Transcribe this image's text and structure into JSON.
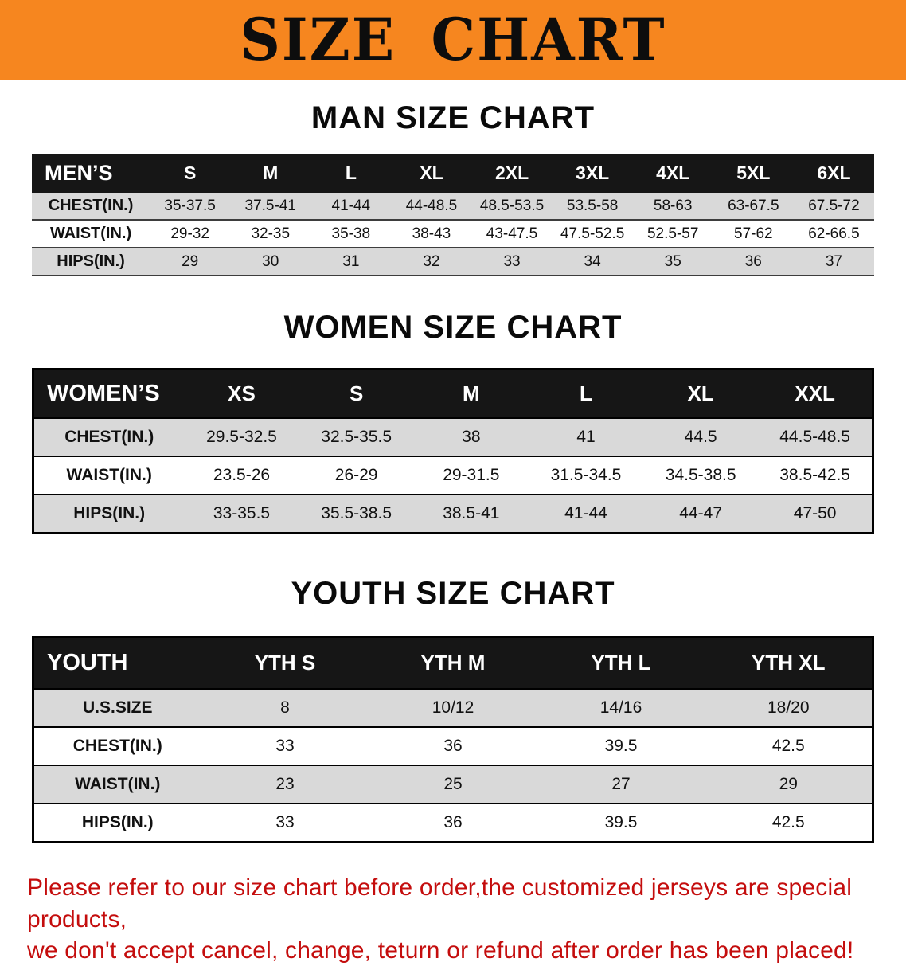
{
  "banner": {
    "title": "SIZE CHART"
  },
  "colors": {
    "banner_bg": "#f6861f",
    "header_bg": "#161616",
    "row_shade": "#d9d9d9",
    "disclaimer_red": "#c40d0d"
  },
  "sections": {
    "men": {
      "heading": "MAN SIZE CHART",
      "table": {
        "header": [
          "MEN’S",
          "S",
          "M",
          "L",
          "XL",
          "2XL",
          "3XL",
          "4XL",
          "5XL",
          "6XL"
        ],
        "rows": [
          {
            "label": "CHEST(IN.)",
            "values": [
              "35-37.5",
              "37.5-41",
              "41-44",
              "44-48.5",
              "48.5-53.5",
              "53.5-58",
              "58-63",
              "63-67.5",
              "67.5-72"
            ]
          },
          {
            "label": "WAIST(IN.)",
            "values": [
              "29-32",
              "32-35",
              "35-38",
              "38-43",
              "43-47.5",
              "47.5-52.5",
              "52.5-57",
              "57-62",
              "62-66.5"
            ]
          },
          {
            "label": "HIPS(IN.)",
            "values": [
              "29",
              "30",
              "31",
              "32",
              "33",
              "34",
              "35",
              "36",
              "37"
            ]
          }
        ]
      }
    },
    "women": {
      "heading": "WOMEN SIZE CHART",
      "table": {
        "header": [
          "WOMEN’S",
          "XS",
          "S",
          "M",
          "L",
          "XL",
          "XXL"
        ],
        "rows": [
          {
            "label": "CHEST(IN.)",
            "values": [
              "29.5-32.5",
              "32.5-35.5",
              "38",
              "41",
              "44.5",
              "44.5-48.5"
            ]
          },
          {
            "label": "WAIST(IN.)",
            "values": [
              "23.5-26",
              "26-29",
              "29-31.5",
              "31.5-34.5",
              "34.5-38.5",
              "38.5-42.5"
            ]
          },
          {
            "label": "HIPS(IN.)",
            "values": [
              "33-35.5",
              "35.5-38.5",
              "38.5-41",
              "41-44",
              "44-47",
              "47-50"
            ]
          }
        ]
      }
    },
    "youth": {
      "heading": "YOUTH SIZE CHART",
      "table": {
        "header": [
          "YOUTH",
          "YTH S",
          "YTH M",
          "YTH L",
          "YTH XL"
        ],
        "rows": [
          {
            "label": "U.S.SIZE",
            "values": [
              "8",
              "10/12",
              "14/16",
              "18/20"
            ]
          },
          {
            "label": "CHEST(IN.)",
            "values": [
              "33",
              "36",
              "39.5",
              "42.5"
            ]
          },
          {
            "label": "WAIST(IN.)",
            "values": [
              "23",
              "25",
              "27",
              "29"
            ]
          },
          {
            "label": "HIPS(IN.)",
            "values": [
              "33",
              "36",
              "39.5",
              "42.5"
            ]
          }
        ]
      }
    }
  },
  "disclaimer": {
    "line1": "Please refer to our size chart before order,the customized jerseys are special products,",
    "line2": "we don't accept cancel, change, teturn or refund after order has been placed!"
  }
}
